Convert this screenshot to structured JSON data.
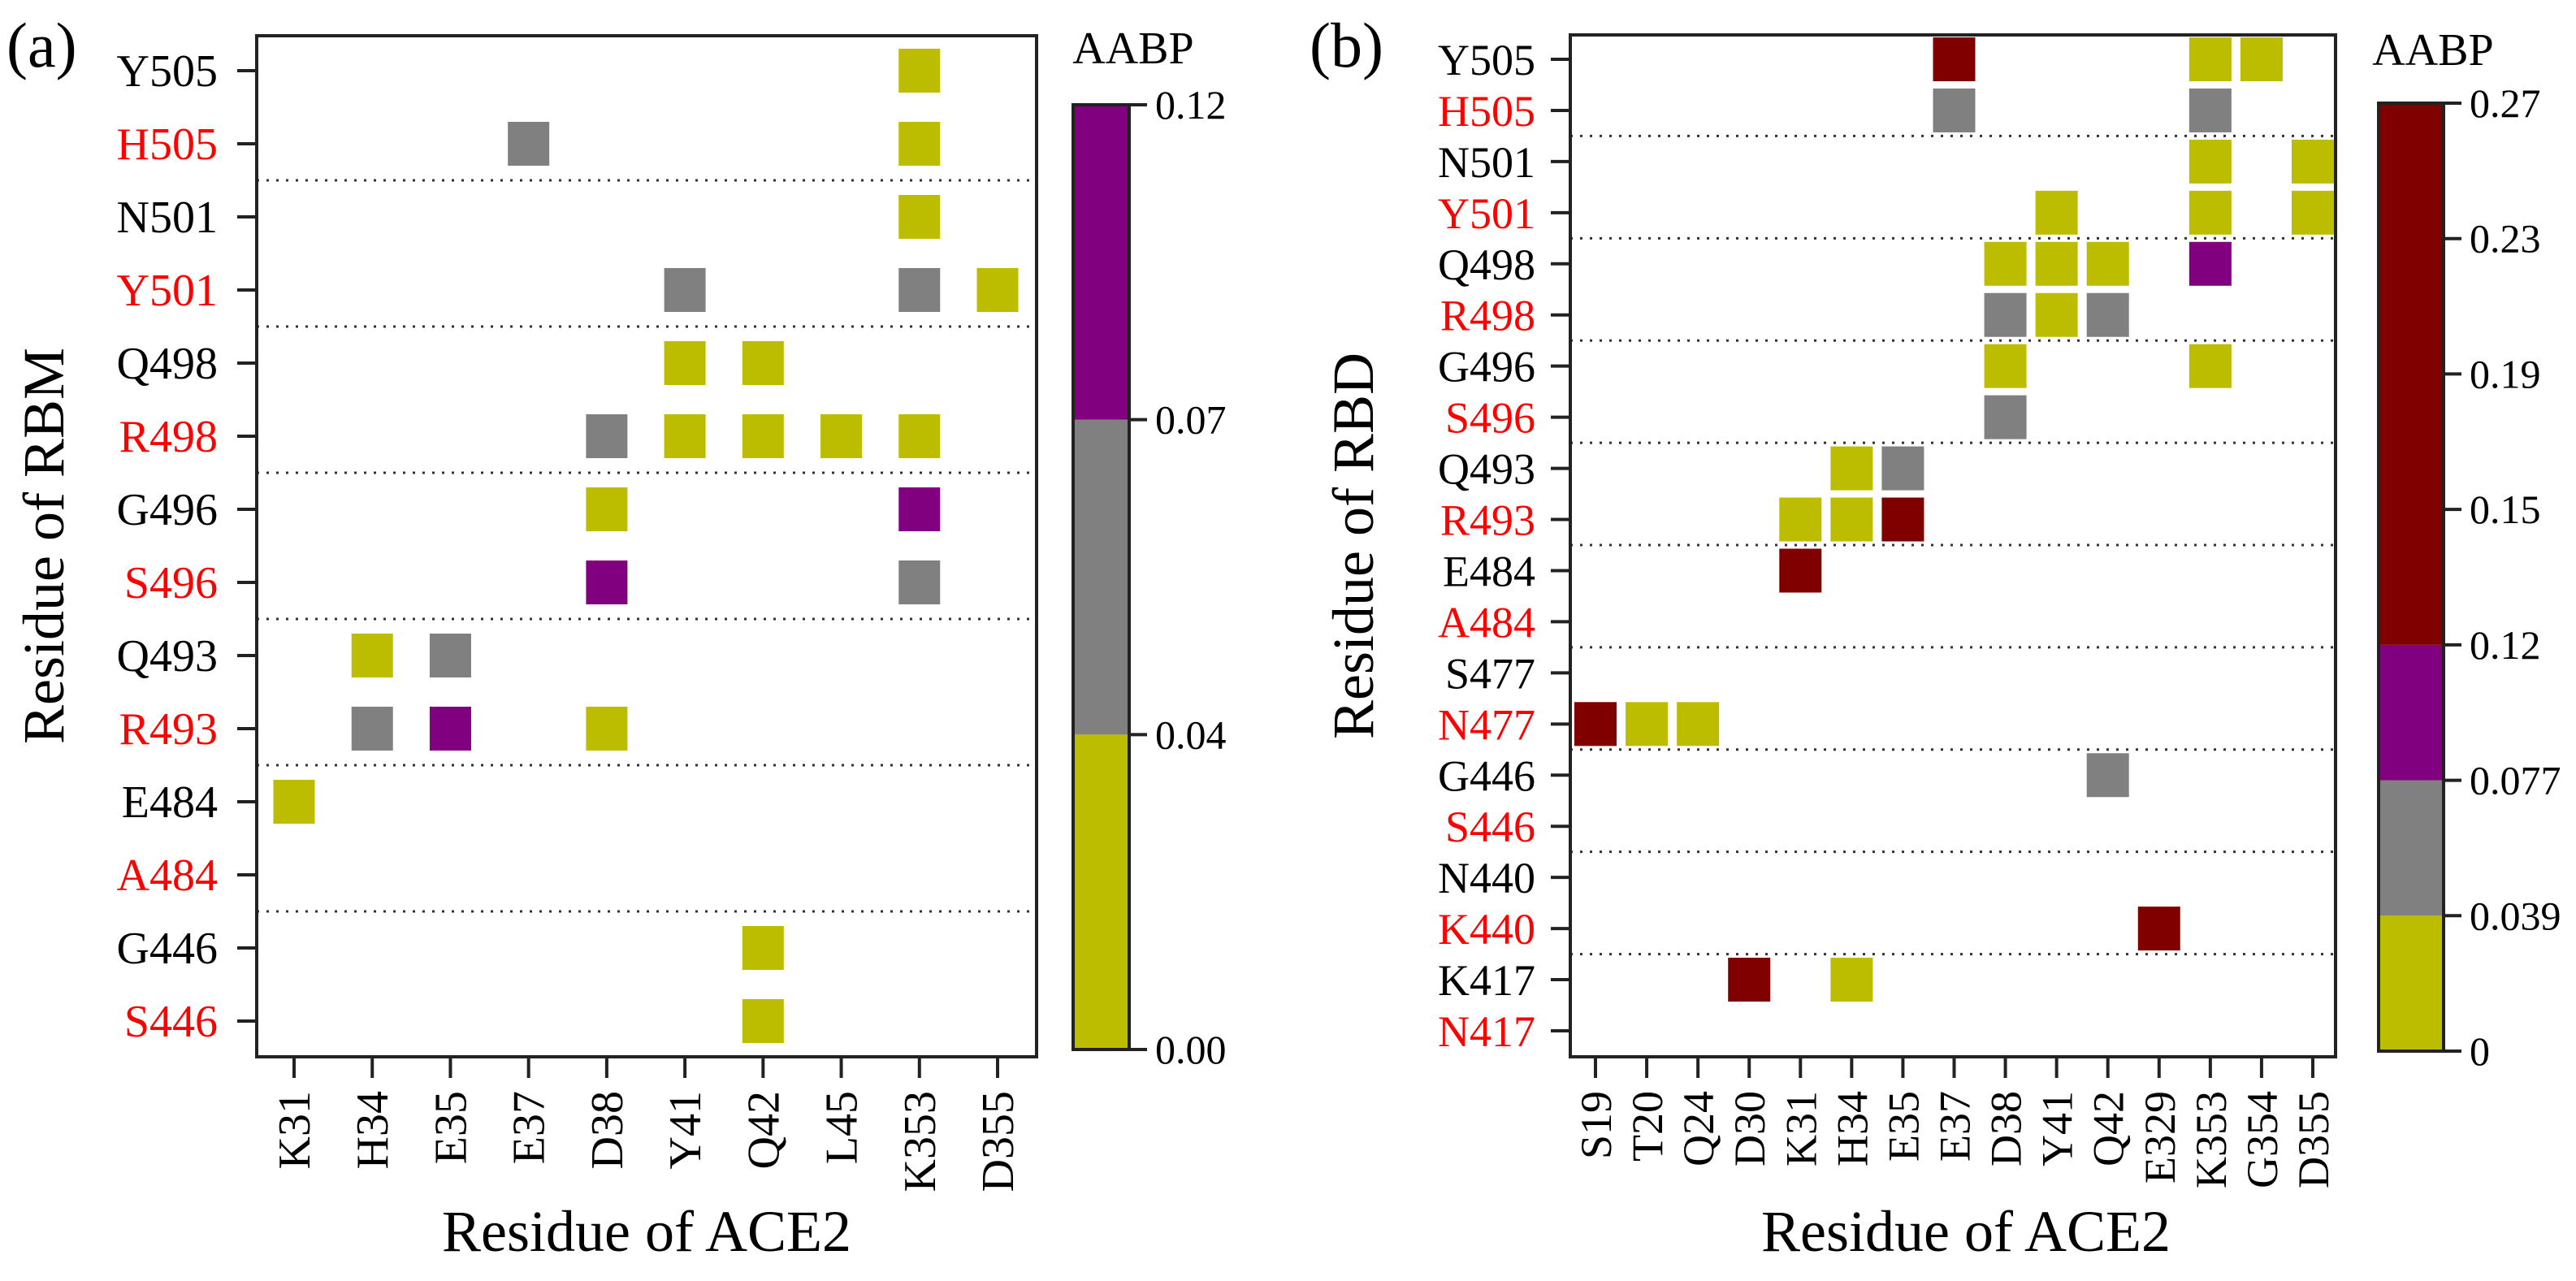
{
  "chart_data": [
    {
      "type": "heatmap",
      "panel_label": "(a)",
      "xlabel": "Residue of ACE2",
      "ylabel": "Residue of RBM",
      "colorbar_title": "AABP",
      "x": [
        "K31",
        "H34",
        "E35",
        "E37",
        "D38",
        "Y41",
        "Q42",
        "L45",
        "K353",
        "D355"
      ],
      "y": [
        "Y505",
        "H505",
        "N501",
        "Y501",
        "Q498",
        "R498",
        "G496",
        "S496",
        "Q493",
        "R493",
        "E484",
        "A484",
        "G446",
        "S446"
      ],
      "y_label_colors": [
        "#000000",
        "#ff0000",
        "#000000",
        "#ff0000",
        "#000000",
        "#ff0000",
        "#000000",
        "#ff0000",
        "#000000",
        "#ff0000",
        "#000000",
        "#ff0000",
        "#000000",
        "#ff0000"
      ],
      "group_separators_after": [
        1,
        3,
        5,
        7,
        9,
        11
      ],
      "bins": [
        {
          "range": [
            0.0,
            0.04
          ],
          "color": "#bdbd00"
        },
        {
          "range": [
            0.04,
            0.07
          ],
          "color": "#808080"
        },
        {
          "range": [
            0.07,
            0.12
          ],
          "color": "#800080"
        }
      ],
      "colorbar_ticks": [
        "0.00",
        "0.04",
        "0.07",
        "0.12"
      ],
      "colorbar_tick_steps": [
        0,
        1,
        2,
        3
      ],
      "colorbar_steps": 3,
      "cells": [
        {
          "y": "Y505",
          "x": "K353",
          "bin": 0
        },
        {
          "y": "H505",
          "x": "E37",
          "bin": 1
        },
        {
          "y": "H505",
          "x": "K353",
          "bin": 0
        },
        {
          "y": "N501",
          "x": "K353",
          "bin": 0
        },
        {
          "y": "Y501",
          "x": "Y41",
          "bin": 1
        },
        {
          "y": "Y501",
          "x": "K353",
          "bin": 1
        },
        {
          "y": "Y501",
          "x": "D355",
          "bin": 0
        },
        {
          "y": "Q498",
          "x": "Y41",
          "bin": 0
        },
        {
          "y": "Q498",
          "x": "Q42",
          "bin": 0
        },
        {
          "y": "R498",
          "x": "D38",
          "bin": 1
        },
        {
          "y": "R498",
          "x": "Y41",
          "bin": 0
        },
        {
          "y": "R498",
          "x": "Q42",
          "bin": 0
        },
        {
          "y": "R498",
          "x": "L45",
          "bin": 0
        },
        {
          "y": "R498",
          "x": "K353",
          "bin": 0
        },
        {
          "y": "G496",
          "x": "D38",
          "bin": 0
        },
        {
          "y": "G496",
          "x": "K353",
          "bin": 2
        },
        {
          "y": "S496",
          "x": "D38",
          "bin": 2
        },
        {
          "y": "S496",
          "x": "K353",
          "bin": 1
        },
        {
          "y": "Q493",
          "x": "H34",
          "bin": 0
        },
        {
          "y": "Q493",
          "x": "E35",
          "bin": 1
        },
        {
          "y": "R493",
          "x": "H34",
          "bin": 1
        },
        {
          "y": "R493",
          "x": "E35",
          "bin": 2
        },
        {
          "y": "R493",
          "x": "D38",
          "bin": 0
        },
        {
          "y": "E484",
          "x": "K31",
          "bin": 0
        },
        {
          "y": "G446",
          "x": "Q42",
          "bin": 0
        },
        {
          "y": "S446",
          "x": "Q42",
          "bin": 0
        }
      ]
    },
    {
      "type": "heatmap",
      "panel_label": "(b)",
      "xlabel": "Residue of ACE2",
      "ylabel": "Residue of RBD",
      "colorbar_title": "AABP",
      "x": [
        "S19",
        "T20",
        "Q24",
        "D30",
        "K31",
        "H34",
        "E35",
        "E37",
        "D38",
        "Y41",
        "Q42",
        "E329",
        "K353",
        "G354",
        "D355"
      ],
      "y": [
        "Y505",
        "H505",
        "N501",
        "Y501",
        "Q498",
        "R498",
        "G496",
        "S496",
        "Q493",
        "R493",
        "E484",
        "A484",
        "S477",
        "N477",
        "G446",
        "S446",
        "N440",
        "K440",
        "K417",
        "N417"
      ],
      "y_label_colors": [
        "#000000",
        "#ff0000",
        "#000000",
        "#ff0000",
        "#000000",
        "#ff0000",
        "#000000",
        "#ff0000",
        "#000000",
        "#ff0000",
        "#000000",
        "#ff0000",
        "#000000",
        "#ff0000",
        "#000000",
        "#ff0000",
        "#000000",
        "#ff0000",
        "#000000",
        "#ff0000"
      ],
      "group_separators_after": [
        1,
        3,
        5,
        7,
        9,
        11,
        13,
        15,
        17
      ],
      "bins": [
        {
          "range": [
            0,
            0.039
          ],
          "color": "#bdbd00"
        },
        {
          "range": [
            0.039,
            0.077
          ],
          "color": "#808080"
        },
        {
          "range": [
            0.077,
            0.12
          ],
          "color": "#800080"
        },
        {
          "range": [
            0.12,
            0.27
          ],
          "color": "#800000"
        }
      ],
      "colorbar_ticks": [
        "0",
        "0.039",
        "0.077",
        "0.12",
        "0.15",
        "0.19",
        "0.23",
        "0.27"
      ],
      "colorbar_tick_steps": [
        0,
        1,
        2,
        3,
        4,
        5,
        6,
        7
      ],
      "colorbar_steps": 7,
      "colorbar_bin_steps": [
        [
          0,
          1
        ],
        [
          1,
          2
        ],
        [
          2,
          3
        ],
        [
          3,
          7
        ]
      ],
      "cells": [
        {
          "y": "Y505",
          "x": "E37",
          "bin": 3
        },
        {
          "y": "Y505",
          "x": "K353",
          "bin": 0
        },
        {
          "y": "Y505",
          "x": "G354",
          "bin": 0
        },
        {
          "y": "H505",
          "x": "E37",
          "bin": 1
        },
        {
          "y": "H505",
          "x": "K353",
          "bin": 1
        },
        {
          "y": "N501",
          "x": "K353",
          "bin": 0
        },
        {
          "y": "N501",
          "x": "D355",
          "bin": 0
        },
        {
          "y": "Y501",
          "x": "Y41",
          "bin": 0
        },
        {
          "y": "Y501",
          "x": "K353",
          "bin": 0
        },
        {
          "y": "Y501",
          "x": "D355",
          "bin": 0
        },
        {
          "y": "Q498",
          "x": "D38",
          "bin": 0
        },
        {
          "y": "Q498",
          "x": "Y41",
          "bin": 0
        },
        {
          "y": "Q498",
          "x": "Q42",
          "bin": 0
        },
        {
          "y": "Q498",
          "x": "K353",
          "bin": 2
        },
        {
          "y": "R498",
          "x": "D38",
          "bin": 1
        },
        {
          "y": "R498",
          "x": "Y41",
          "bin": 0
        },
        {
          "y": "R498",
          "x": "Q42",
          "bin": 1
        },
        {
          "y": "G496",
          "x": "D38",
          "bin": 0
        },
        {
          "y": "G496",
          "x": "K353",
          "bin": 0
        },
        {
          "y": "S496",
          "x": "D38",
          "bin": 1
        },
        {
          "y": "Q493",
          "x": "H34",
          "bin": 0
        },
        {
          "y": "Q493",
          "x": "E35",
          "bin": 1
        },
        {
          "y": "R493",
          "x": "K31",
          "bin": 0
        },
        {
          "y": "R493",
          "x": "H34",
          "bin": 0
        },
        {
          "y": "R493",
          "x": "E35",
          "bin": 3
        },
        {
          "y": "E484",
          "x": "K31",
          "bin": 3
        },
        {
          "y": "N477",
          "x": "S19",
          "bin": 3
        },
        {
          "y": "N477",
          "x": "T20",
          "bin": 0
        },
        {
          "y": "N477",
          "x": "Q24",
          "bin": 0
        },
        {
          "y": "G446",
          "x": "Q42",
          "bin": 1
        },
        {
          "y": "K440",
          "x": "E329",
          "bin": 3
        },
        {
          "y": "K417",
          "x": "D30",
          "bin": 3
        },
        {
          "y": "K417",
          "x": "H34",
          "bin": 0
        }
      ]
    }
  ]
}
